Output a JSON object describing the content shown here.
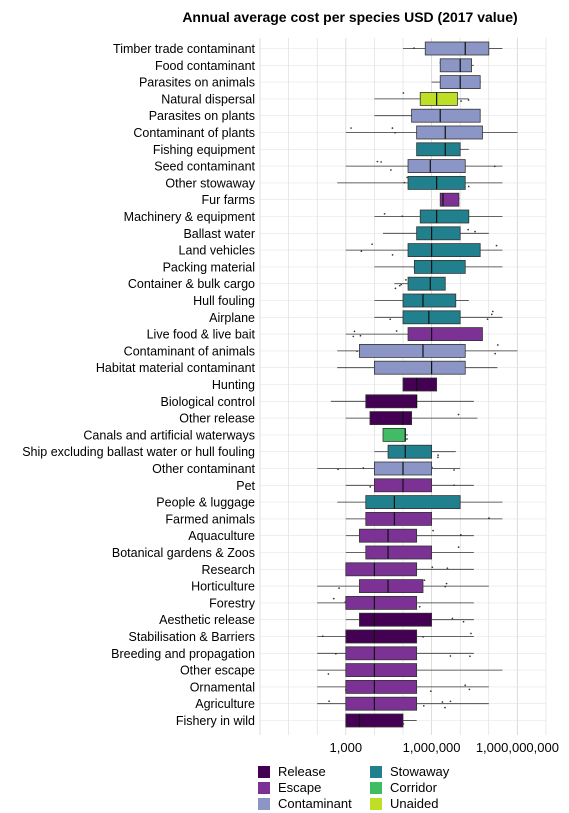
{
  "chart_data": {
    "type": "box",
    "title": "Annual average cost per species USD (2017 value)",
    "x_scale": "log10",
    "xlim": [
      1,
      10000000000
    ],
    "x_ticks": [
      {
        "value": 1000,
        "label": "1,000"
      },
      {
        "value": 1000000,
        "label": "1,000,000"
      },
      {
        "value": 1000000000,
        "label": "1,000,000,000"
      }
    ],
    "grid": true,
    "legend_position": "bottom",
    "groups": [
      {
        "name": "Release",
        "color": "#440154"
      },
      {
        "name": "Escape",
        "color": "#7b3294"
      },
      {
        "name": "Contaminant",
        "color": "#8c96c6"
      },
      {
        "name": "Stowaway",
        "color": "#21808d"
      },
      {
        "name": "Corridor",
        "color": "#3fbc64"
      },
      {
        "name": "Unaided",
        "color": "#bddf26"
      }
    ],
    "categories": [
      {
        "label": "Timber trade contaminant",
        "group": "Contaminant",
        "min": 100000,
        "q1": 600000,
        "median": 15000000,
        "q3": 100000000,
        "max": 300000000
      },
      {
        "label": "Food contaminant",
        "group": "Contaminant",
        "min": 2000000,
        "q1": 2000000,
        "median": 10000000,
        "q3": 25000000,
        "max": 30000000
      },
      {
        "label": "Parasites on animals",
        "group": "Contaminant",
        "min": 1000000,
        "q1": 2000000,
        "median": 10000000,
        "q3": 50000000,
        "max": 50000000
      },
      {
        "label": "Natural dispersal",
        "group": "Unaided",
        "min": 10000,
        "q1": 400000,
        "median": 1500000,
        "q3": 8000000,
        "max": 20000000
      },
      {
        "label": "Parasites on plants",
        "group": "Contaminant",
        "min": 10000,
        "q1": 200000,
        "median": 2000000,
        "q3": 50000000,
        "max": 50000000
      },
      {
        "label": "Contaminant of plants",
        "group": "Contaminant",
        "min": 1000,
        "q1": 300000,
        "median": 3000000,
        "q3": 60000000,
        "max": 1000000000
      },
      {
        "label": "Fishing equipment",
        "group": "Stowaway",
        "min": 300000,
        "q1": 300000,
        "median": 3000000,
        "q3": 10000000,
        "max": 20000000
      },
      {
        "label": "Seed contaminant",
        "group": "Contaminant",
        "min": 1000,
        "q1": 150000,
        "median": 900000,
        "q3": 15000000,
        "max": 300000000
      },
      {
        "label": "Other stowaway",
        "group": "Stowaway",
        "min": 500,
        "q1": 150000,
        "median": 1500000,
        "q3": 15000000,
        "max": 300000000
      },
      {
        "label": "Fur farms",
        "group": "Escape",
        "min": 2000000,
        "q1": 2000000,
        "median": 2500000,
        "q3": 9000000,
        "max": 9000000
      },
      {
        "label": "Machinery & equipment",
        "group": "Stowaway",
        "min": 10000,
        "q1": 400000,
        "median": 1500000,
        "q3": 20000000,
        "max": 300000000
      },
      {
        "label": "Ballast water",
        "group": "Stowaway",
        "min": 20000,
        "q1": 300000,
        "median": 1000000,
        "q3": 10000000,
        "max": 100000000
      },
      {
        "label": "Land vehicles",
        "group": "Stowaway",
        "min": 1000,
        "q1": 150000,
        "median": 1000000,
        "q3": 50000000,
        "max": 300000000
      },
      {
        "label": "Packing material",
        "group": "Stowaway",
        "min": 10000,
        "q1": 250000,
        "median": 1000000,
        "q3": 15000000,
        "max": 300000000
      },
      {
        "label": "Container & bulk cargo",
        "group": "Stowaway",
        "min": 50000,
        "q1": 150000,
        "median": 900000,
        "q3": 3000000,
        "max": 3000000
      },
      {
        "label": "Hull fouling",
        "group": "Stowaway",
        "min": 10000,
        "q1": 100000,
        "median": 500000,
        "q3": 7000000,
        "max": 20000000
      },
      {
        "label": "Airplane",
        "group": "Stowaway",
        "min": 10000,
        "q1": 100000,
        "median": 800000,
        "q3": 10000000,
        "max": 300000000
      },
      {
        "label": "Live food & live bait",
        "group": "Escape",
        "min": 1000,
        "q1": 150000,
        "median": 1000000,
        "q3": 60000000,
        "max": 60000000
      },
      {
        "label": "Contaminant of animals",
        "group": "Contaminant",
        "min": 500,
        "q1": 3000,
        "median": 500000,
        "q3": 15000000,
        "max": 1000000000
      },
      {
        "label": "Habitat material contaminant",
        "group": "Contaminant",
        "min": 500,
        "q1": 10000,
        "median": 1000000,
        "q3": 15000000,
        "max": 200000000
      },
      {
        "label": "Hunting",
        "group": "Release",
        "min": 100000,
        "q1": 100000,
        "median": 300000,
        "q3": 1500000,
        "max": 1500000
      },
      {
        "label": "Biological control",
        "group": "Release",
        "min": 300,
        "q1": 5000,
        "median": 300000,
        "q3": 300000,
        "max": 30000000
      },
      {
        "label": "Other release",
        "group": "Release",
        "min": 1000,
        "q1": 7000,
        "median": 100000,
        "q3": 200000,
        "max": 40000000
      },
      {
        "label": "Canals and artificial waterways",
        "group": "Corridor",
        "min": 20000,
        "q1": 20000,
        "median": 120000,
        "q3": 120000,
        "max": 150000
      },
      {
        "label": "Ship excluding ballast water or hull fouling",
        "group": "Stowaway",
        "min": 10000,
        "q1": 30000,
        "median": 120000,
        "q3": 1000000,
        "max": 7000000
      },
      {
        "label": "Other contaminant",
        "group": "Contaminant",
        "min": 100,
        "q1": 10000,
        "median": 100000,
        "q3": 1000000,
        "max": 10000000
      },
      {
        "label": "Pet",
        "group": "Escape",
        "min": 1000,
        "q1": 10000,
        "median": 100000,
        "q3": 1000000,
        "max": 30000000
      },
      {
        "label": "People & luggage",
        "group": "Stowaway",
        "min": 500,
        "q1": 5000,
        "median": 50000,
        "q3": 10000000,
        "max": 300000000
      },
      {
        "label": "Farmed animals",
        "group": "Escape",
        "min": 1000,
        "q1": 5000,
        "median": 50000,
        "q3": 1000000,
        "max": 300000000
      },
      {
        "label": "Aquaculture",
        "group": "Escape",
        "min": 1000,
        "q1": 3000,
        "median": 30000,
        "q3": 300000,
        "max": 30000000
      },
      {
        "label": "Botanical gardens & Zoos",
        "group": "Escape",
        "min": 1000,
        "q1": 5000,
        "median": 30000,
        "q3": 1000000,
        "max": 30000000
      },
      {
        "label": "Research",
        "group": "Escape",
        "min": 1000,
        "q1": 1000,
        "median": 10000,
        "q3": 300000,
        "max": 30000000
      },
      {
        "label": "Horticulture",
        "group": "Escape",
        "min": 100,
        "q1": 3000,
        "median": 30000,
        "q3": 500000,
        "max": 100000000
      },
      {
        "label": "Forestry",
        "group": "Escape",
        "min": 100,
        "q1": 1000,
        "median": 10000,
        "q3": 300000,
        "max": 30000000
      },
      {
        "label": "Aesthetic release",
        "group": "Release",
        "min": 1000,
        "q1": 3000,
        "median": 10000,
        "q3": 1000000,
        "max": 30000000
      },
      {
        "label": "Stabilisation & Barriers",
        "group": "Release",
        "min": 100,
        "q1": 1000,
        "median": 10000,
        "q3": 300000,
        "max": 30000000
      },
      {
        "label": "Breeding and propagation",
        "group": "Escape",
        "min": 100,
        "q1": 1000,
        "median": 10000,
        "q3": 300000,
        "max": 30000000
      },
      {
        "label": "Other escape",
        "group": "Escape",
        "min": 100,
        "q1": 1000,
        "median": 10000,
        "q3": 300000,
        "max": 300000000
      },
      {
        "label": "Ornamental",
        "group": "Escape",
        "min": 100,
        "q1": 1000,
        "median": 10000,
        "q3": 300000,
        "max": 100000000
      },
      {
        "label": "Agriculture",
        "group": "Escape",
        "min": 100,
        "q1": 1000,
        "median": 10000,
        "q3": 300000,
        "max": 100000000
      },
      {
        "label": "Fishery in wild",
        "group": "Release",
        "min": 1000,
        "q1": 1000,
        "median": 3000,
        "q3": 100000,
        "max": 300000
      }
    ]
  }
}
